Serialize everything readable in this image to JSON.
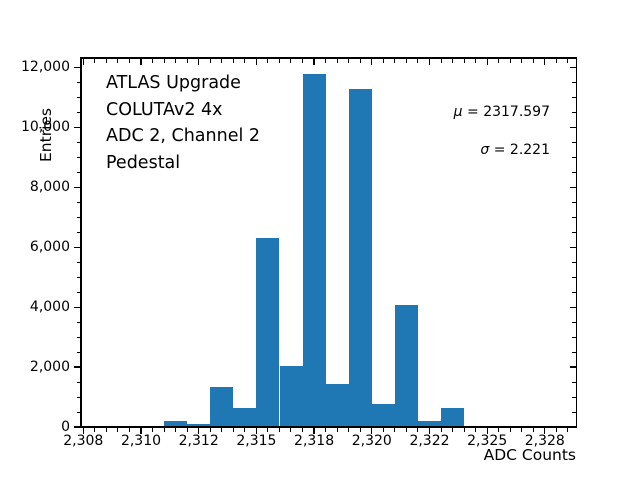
{
  "chart_data": {
    "type": "bar",
    "title": "",
    "xlabel": "ADC Counts",
    "ylabel": "Entries",
    "bar_color": "#1f77b4",
    "background_color": "#ffffff",
    "bin_width": 1,
    "x": [
      2311,
      2312,
      2313,
      2314,
      2315,
      2316,
      2317,
      2318,
      2319,
      2320,
      2321,
      2322,
      2323,
      2324,
      2325,
      2326
    ],
    "values": [
      190,
      110,
      1340,
      650,
      6300,
      2050,
      11780,
      1430,
      11270,
      780,
      4060,
      200,
      640,
      0,
      0,
      50
    ],
    "xlim": [
      2307.4,
      2328.85
    ],
    "ylim": [
      0,
      12336
    ],
    "grid": false,
    "legend": null,
    "x_ticks": {
      "values": [
        2307.5,
        2310,
        2312.5,
        2315,
        2317.5,
        2320,
        2322.5,
        2325,
        2327.5
      ],
      "labels": [
        "2,308",
        "2,310",
        "2,312",
        "2,315",
        "2,318",
        "2,320",
        "2,322",
        "2,325",
        "2,328"
      ],
      "minor_step": 0.5
    },
    "y_ticks": {
      "values": [
        0,
        2000,
        4000,
        6000,
        8000,
        10000,
        12000
      ],
      "labels": [
        "0",
        "2,000",
        "4,000",
        "6,000",
        "8,000",
        "10,000",
        "12,000"
      ],
      "minor_step": 500
    },
    "annotations": {
      "lines": [
        "ATLAS Upgrade",
        "COLUTAv2 4x",
        "ADC 2, Channel 2",
        "Pedestal"
      ],
      "mu_symbol": "μ",
      "mu_text": " = 2317.597",
      "sigma_symbol": "σ",
      "sigma_text": " = 2.221"
    }
  }
}
